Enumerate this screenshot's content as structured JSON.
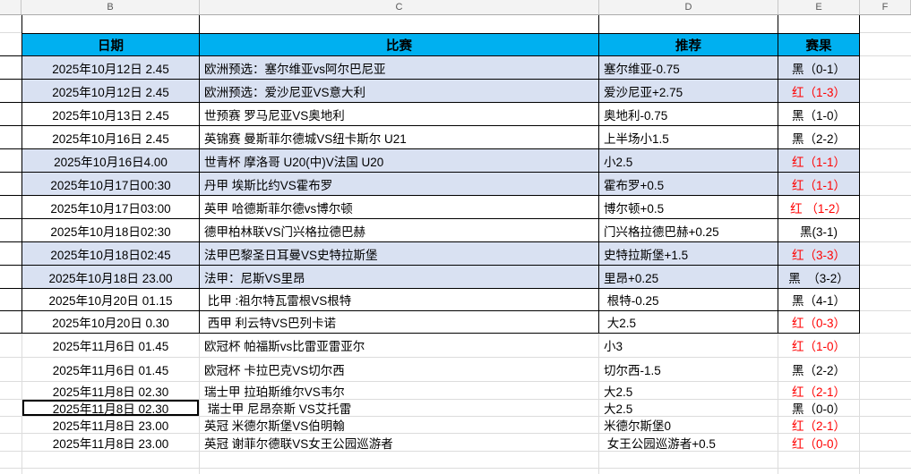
{
  "spreadsheet": {
    "column_letters": [
      "B",
      "C",
      "D",
      "E",
      "F"
    ],
    "table_headers": {
      "date": "日期",
      "match": "比赛",
      "pick": "推荐",
      "result": "赛果"
    },
    "colors": {
      "header_bg": "#00B0F0",
      "row_shade": "#D9E1F2",
      "result_red": "#FF0000"
    },
    "selected_cell": {
      "row": 16,
      "column": "date"
    },
    "rows": [
      {
        "date": "2025年10月12日 2.45",
        "match": "欧洲预选：塞尔维亚vs阿尔巴尼亚",
        "pick": "塞尔维亚-0.75",
        "result": "黑（0-1）",
        "result_color": "black"
      },
      {
        "date": "2025年10月12日 2.45",
        "match": "欧洲预选：爱沙尼亚VS意大利",
        "pick": "爱沙尼亚+2.75",
        "result": "红（1-3）",
        "result_color": "red"
      },
      {
        "date": "2025年10月13日 2.45",
        "match": "世预赛 罗马尼亚VS奥地利",
        "pick": "奥地利-0.75",
        "result": "黑（1-0）",
        "result_color": "black"
      },
      {
        "date": "2025年10月16日 2.45",
        "match": "英锦赛 曼斯菲尔德城VS纽卡斯尔 U21",
        "pick": "上半场小1.5",
        "result": "黑（2-2）",
        "result_color": "black"
      },
      {
        "date": "2025年10月16日4.00",
        "match": "世青杯 摩洛哥 U20(中)V法国 U20",
        "pick": "小2.5",
        "result": "红（1-1）",
        "result_color": "red"
      },
      {
        "date": "2025年10月17日00:30",
        "match": "丹甲 埃斯比约VS霍布罗",
        "pick": "霍布罗+0.5",
        "result": "红（1-1）",
        "result_color": "red"
      },
      {
        "date": "2025年10月17日03:00",
        "match": "英甲 哈德斯菲尔德vs博尔顿",
        "pick": "博尔顿+0.5",
        "result": "红 （1-2）",
        "result_color": "red"
      },
      {
        "date": "2025年10月18日02:30",
        "match": "德甲柏林联VS门兴格拉德巴赫",
        "pick": "门兴格拉德巴赫+0.25",
        "result": "黑(3-1)",
        "result_color": "black"
      },
      {
        "date": "2025年10月18日02:45",
        "match": "法甲巴黎圣日耳曼VS史特拉斯堡",
        "pick": "史特拉斯堡+1.5",
        "result": "红（3-3）",
        "result_color": "red"
      },
      {
        "date": "2025年10月18日 23.00",
        "match": "法甲：尼斯VS里昂",
        "pick": "里昂+0.25",
        "result": "黑  （3-2）",
        "result_color": "black"
      },
      {
        "date": "2025年10月20日 01.15",
        "match": " 比甲 :祖尔特瓦雷根VS根特",
        "pick": " 根特-0.25",
        "result": "黑（4-1）",
        "result_color": "black"
      },
      {
        "date": "2025年10月20日 0.30",
        "match": " 西甲 利云特VS巴列卡诺",
        "pick": " 大2.5",
        "result": "红（0-3）",
        "result_color": "red"
      },
      {
        "date": "2025年11月6日 01.45",
        "match": "欧冠杯 帕福斯vs比雷亚雷亚尔",
        "pick": "小3",
        "result": "红（1-0）",
        "result_color": "red"
      },
      {
        "date": "2025年11月6日 01.45",
        "match": "欧冠杯 卡拉巴克VS切尔西",
        "pick": "切尔西-1.5",
        "result": "黑（2-2）",
        "result_color": "black"
      },
      {
        "date": "2025年11月8日 02.30",
        "match": "瑞士甲 拉珀斯维尔VS韦尔",
        "pick": "大2.5",
        "result": "红（2-1）",
        "result_color": "red"
      },
      {
        "date": "2025年11月8日 02.30",
        "match": " 瑞士甲 尼昂奈斯 VS艾托雷",
        "pick": "大2.5",
        "result": "黑（0-0）",
        "result_color": "black"
      },
      {
        "date": "2025年11月8日 23.00",
        "match": "英冠 米德尔斯堡VS伯明翰",
        "pick": "米德尔斯堡0",
        "result": "红（2-1）",
        "result_color": "red"
      },
      {
        "date": "2025年11月8日 23.00",
        "match": "英冠 谢菲尔德联VS女王公园巡游者",
        "pick": " 女王公园巡游者+0.5",
        "result": "红（0-0）",
        "result_color": "red"
      }
    ]
  }
}
